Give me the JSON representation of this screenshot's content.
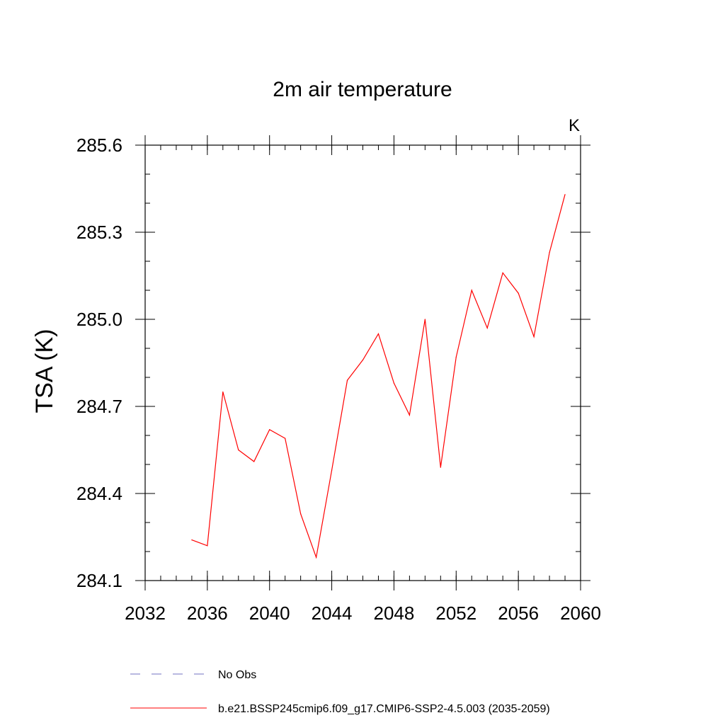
{
  "chart_data": {
    "type": "line",
    "title": "2m air temperature",
    "units_label": "K",
    "xlabel": "",
    "ylabel": "TSA  (K)",
    "xlim": [
      2032,
      2060
    ],
    "ylim": [
      284.1,
      285.6
    ],
    "x_ticks": [
      2032,
      2036,
      2040,
      2044,
      2048,
      2052,
      2056,
      2060
    ],
    "y_ticks": [
      284.1,
      284.4,
      284.7,
      285.0,
      285.3,
      285.6
    ],
    "x_minor_step": 1,
    "y_minor_step": 0.1,
    "grid": false,
    "legend_position": "bottom",
    "series": [
      {
        "name": "b.e21.BSSP245cmip6.f09_g17.CMIP6-SSP2-4.5.003 (2035-2059)",
        "color": "#ff0000",
        "style": "solid",
        "x": [
          2035,
          2036,
          2037,
          2038,
          2039,
          2040,
          2041,
          2042,
          2043,
          2044,
          2045,
          2046,
          2047,
          2048,
          2049,
          2050,
          2051,
          2052,
          2053,
          2054,
          2055,
          2056,
          2057,
          2058,
          2059
        ],
        "y": [
          284.24,
          284.22,
          284.75,
          284.55,
          284.51,
          284.62,
          284.59,
          284.33,
          284.18,
          284.48,
          284.79,
          284.86,
          284.95,
          284.78,
          284.67,
          285.0,
          284.49,
          284.87,
          285.1,
          284.97,
          285.16,
          285.09,
          284.94,
          285.23,
          285.43
        ]
      }
    ],
    "legend": [
      {
        "label": "No Obs",
        "color": "#7070c0",
        "style": "dashed"
      },
      {
        "label": "b.e21.BSSP245cmip6.f09_g17.CMIP6-SSP2-4.5.003 (2035-2059)",
        "color": "#ff0000",
        "style": "solid"
      }
    ]
  }
}
